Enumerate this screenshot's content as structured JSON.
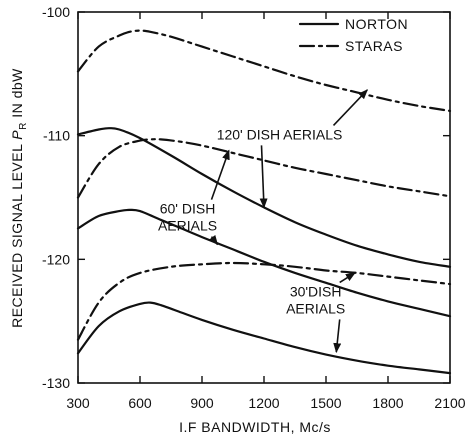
{
  "chart_data": {
    "type": "line",
    "xlabel": "I.F BANDWIDTH, Mc/s",
    "ylabel": "RECEIVED SIGNAL LEVEL P_R IN dbW",
    "ylabel_parts": {
      "pre": "RECEIVED SIGNAL LEVEL ",
      "sym": "P",
      "sub": "R",
      "post": " IN dbW"
    },
    "xlim": [
      300,
      2100
    ],
    "ylim": [
      -130,
      -100
    ],
    "xticks": [
      300,
      600,
      900,
      1200,
      1500,
      1800,
      2100
    ],
    "yticks": [
      -100,
      -110,
      -120,
      -130
    ],
    "ytick_labels": [
      "-100",
      "-110",
      "-120",
      "-130"
    ],
    "grid": false,
    "legend_position": "top-right",
    "legend": [
      {
        "label": "NORTON",
        "style": "solid"
      },
      {
        "label": "STARAS",
        "style": "dashdot"
      }
    ],
    "series": [
      {
        "name": "NORTON",
        "group": "120' DISH AERIALS",
        "style": "solid",
        "x": [
          300,
          400,
          450,
          500,
          600,
          750,
          900,
          1050,
          1200,
          1350,
          1500,
          1650,
          1800,
          1950,
          2100
        ],
        "y": [
          -109.9,
          -109.5,
          -109.4,
          -109.5,
          -110.2,
          -111.6,
          -113.1,
          -114.5,
          -115.8,
          -117.0,
          -118.0,
          -118.9,
          -119.6,
          -120.2,
          -120.6
        ]
      },
      {
        "name": "STARAS",
        "group": "120' DISH AERIALS",
        "style": "dashdot",
        "x": [
          300,
          400,
          500,
          550,
          600,
          650,
          750,
          900,
          1050,
          1200,
          1350,
          1500,
          1650,
          1800,
          1950,
          2100
        ],
        "y": [
          -104.8,
          -102.8,
          -101.9,
          -101.6,
          -101.5,
          -101.6,
          -102.0,
          -102.8,
          -103.6,
          -104.4,
          -105.2,
          -105.9,
          -106.5,
          -107.1,
          -107.6,
          -108.0
        ]
      },
      {
        "name": "NORTON",
        "group": "60' DISH AERIALS",
        "style": "solid",
        "x": [
          300,
          400,
          500,
          550,
          600,
          700,
          800,
          900,
          1050,
          1200,
          1350,
          1500,
          1650,
          1800,
          1950,
          2100
        ],
        "y": [
          -117.5,
          -116.5,
          -116.1,
          -116.0,
          -116.1,
          -116.8,
          -117.5,
          -118.2,
          -119.2,
          -120.2,
          -121.1,
          -121.9,
          -122.7,
          -123.4,
          -124.0,
          -124.6
        ]
      },
      {
        "name": "STARAS",
        "group": "60' DISH AERIALS",
        "style": "dashdot",
        "x": [
          300,
          400,
          500,
          600,
          650,
          700,
          800,
          900,
          1050,
          1200,
          1350,
          1500,
          1650,
          1800,
          1950,
          2100
        ],
        "y": [
          -115.0,
          -112.3,
          -110.9,
          -110.4,
          -110.3,
          -110.3,
          -110.5,
          -110.8,
          -111.4,
          -112.0,
          -112.6,
          -113.1,
          -113.6,
          -114.1,
          -114.5,
          -114.9
        ]
      },
      {
        "name": "NORTON",
        "group": "30' DISH AERIALS",
        "style": "solid",
        "x": [
          300,
          400,
          500,
          600,
          650,
          700,
          800,
          900,
          1050,
          1200,
          1350,
          1500,
          1650,
          1800,
          1950,
          2100
        ],
        "y": [
          -127.6,
          -125.4,
          -124.2,
          -123.6,
          -123.5,
          -123.7,
          -124.3,
          -124.9,
          -125.7,
          -126.4,
          -127.1,
          -127.7,
          -128.2,
          -128.6,
          -128.9,
          -129.2
        ]
      },
      {
        "name": "STARAS",
        "group": "30' DISH AERIALS",
        "style": "dashdot",
        "x": [
          300,
          400,
          500,
          600,
          750,
          900,
          1050,
          1200,
          1350,
          1500,
          1650,
          1800,
          1950,
          2100
        ],
        "y": [
          -126.5,
          -123.5,
          -121.9,
          -121.1,
          -120.6,
          -120.4,
          -120.3,
          -120.4,
          -120.6,
          -120.9,
          -121.1,
          -121.4,
          -121.7,
          -122.0
        ]
      }
    ],
    "annotations": [
      {
        "id": "a120",
        "lines": [
          "120' DISH AERIALS"
        ],
        "label_at": [
          1275,
          -110.3
        ],
        "arrows_to": [
          [
            1700,
            -106.3
          ],
          [
            1200,
            -115.8
          ]
        ]
      },
      {
        "id": "a60",
        "lines": [
          "60' DISH",
          "AERIALS"
        ],
        "label_at": [
          830,
          -116.3
        ],
        "arrows_to": [
          [
            1030,
            -111.2
          ],
          [
            975,
            -118.8
          ]
        ]
      },
      {
        "id": "a30",
        "lines": [
          "30'DISH",
          "AERIALS"
        ],
        "label_at": [
          1450,
          -123.0
        ],
        "arrows_to": [
          [
            1550,
            -127.5
          ],
          [
            1640,
            -121.1
          ]
        ]
      }
    ]
  }
}
